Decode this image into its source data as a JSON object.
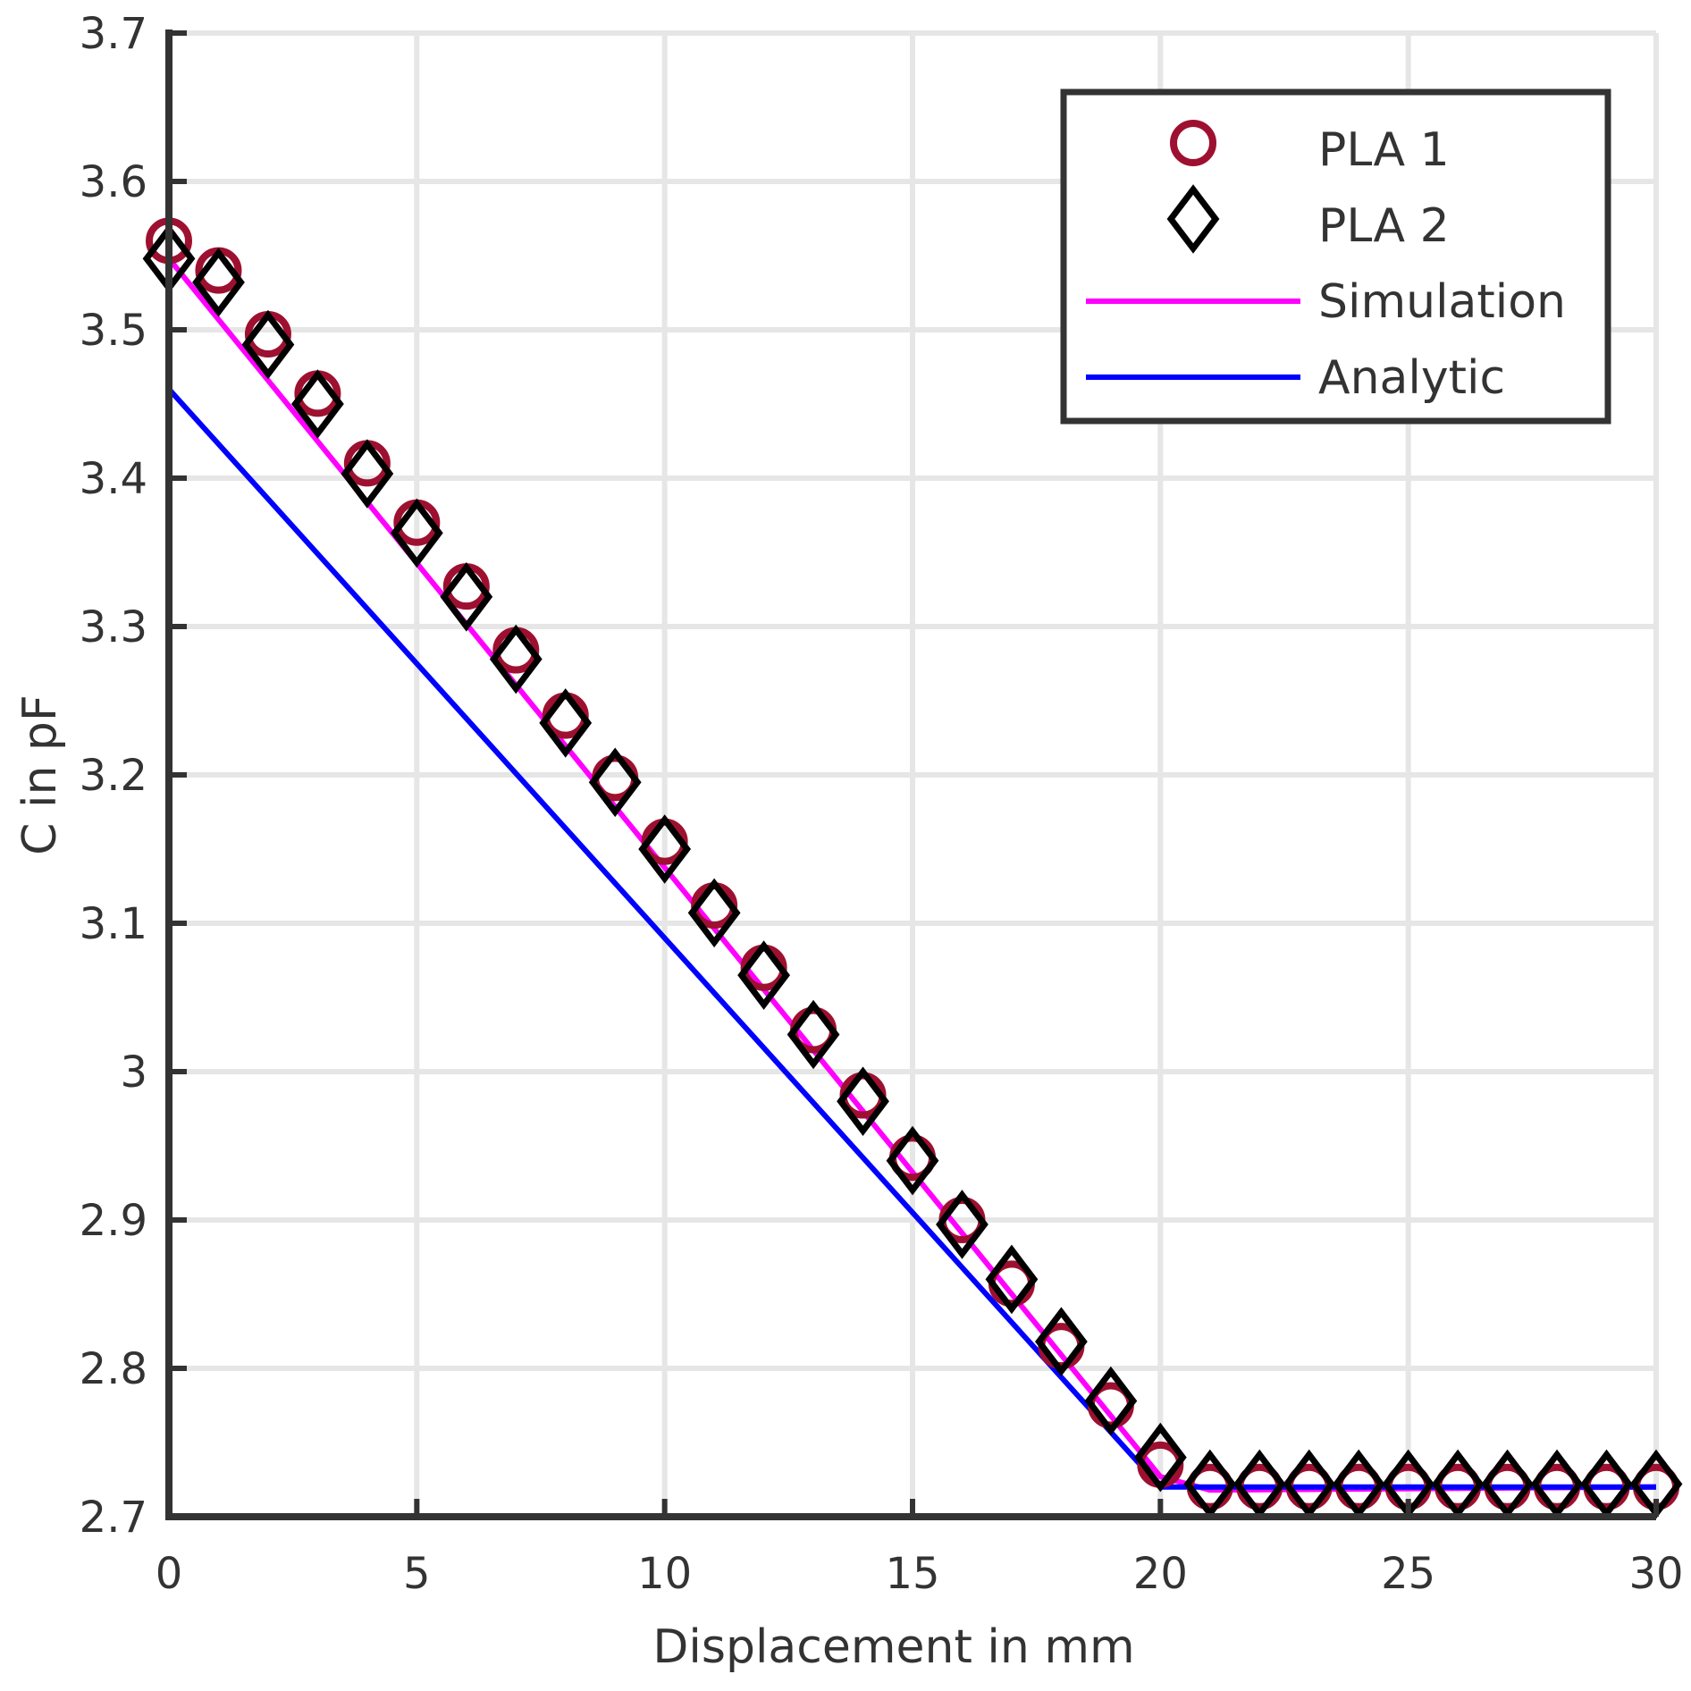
{
  "chart_data": {
    "type": "line",
    "title": "",
    "xlabel": "Displacement in mm",
    "ylabel": "C in pF",
    "xlim": [
      0,
      30
    ],
    "ylim": [
      2.7,
      3.7
    ],
    "xticks": [
      "0",
      "5",
      "10",
      "15",
      "20",
      "25",
      "30"
    ],
    "yticks": [
      "2.7",
      "2.8",
      "2.9",
      "3",
      "3.1",
      "3.2",
      "3.3",
      "3.4",
      "3.5",
      "3.6",
      "3.7"
    ],
    "grid": true,
    "legend_position": "top-right",
    "x": [
      0,
      1,
      2,
      3,
      4,
      5,
      6,
      7,
      8,
      9,
      10,
      11,
      12,
      13,
      14,
      15,
      16,
      17,
      18,
      19,
      20,
      21,
      22,
      23,
      24,
      25,
      26,
      27,
      28,
      29,
      30
    ],
    "series": [
      {
        "name": "PLA 1",
        "style": "circle",
        "color": "#9e1030",
        "values": [
          3.56,
          3.54,
          3.497,
          3.457,
          3.41,
          3.37,
          3.327,
          3.284,
          3.24,
          3.198,
          3.155,
          3.112,
          3.07,
          3.028,
          2.984,
          2.942,
          2.9,
          2.857,
          2.815,
          2.775,
          2.735,
          2.72,
          2.72,
          2.72,
          2.72,
          2.72,
          2.72,
          2.72,
          2.72,
          2.72,
          2.72
        ]
      },
      {
        "name": "PLA 2",
        "style": "diamond",
        "color": "#000000",
        "values": [
          3.548,
          3.532,
          3.49,
          3.45,
          3.403,
          3.363,
          3.32,
          3.278,
          3.235,
          3.195,
          3.15,
          3.107,
          3.065,
          3.025,
          2.98,
          2.94,
          2.897,
          2.86,
          2.818,
          2.778,
          2.74,
          2.722,
          2.722,
          2.722,
          2.722,
          2.722,
          2.722,
          2.722,
          2.722,
          2.722,
          2.722
        ]
      },
      {
        "name": "Simulation",
        "style": "line",
        "color": "#ff00ff",
        "x": [
          0,
          20,
          21,
          30
        ],
        "values": [
          3.548,
          2.727,
          2.718,
          2.72
        ]
      },
      {
        "name": "Analytic",
        "style": "line",
        "color": "#0000ff",
        "x": [
          0,
          20,
          30
        ],
        "values": [
          3.46,
          2.72,
          2.72
        ]
      }
    ]
  }
}
